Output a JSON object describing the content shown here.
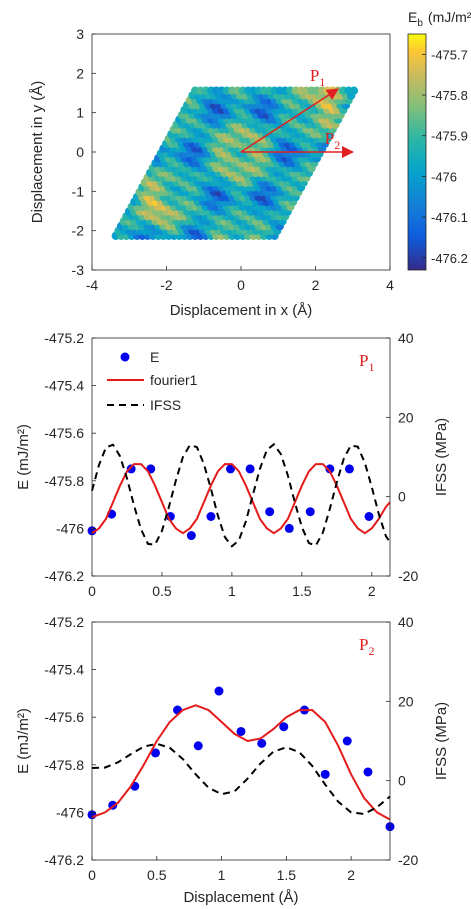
{
  "chart_data": [
    {
      "type": "heatmap",
      "xlabel": "Displacement in x (Å)",
      "ylabel": "Displacement in y (Å)",
      "xlim": [
        -4,
        4
      ],
      "ylim": [
        -3,
        3
      ],
      "xticks": [
        "-4",
        "-2",
        "0",
        "2",
        "4"
      ],
      "yticks": [
        "-3",
        "-2",
        "-1",
        "0",
        "1",
        "2",
        "3"
      ],
      "colorbar": {
        "title_main": "E",
        "title_sub": "b",
        "title_unit": "(mJ/m²)",
        "range": [
          -476.23,
          -475.65
        ],
        "ticks": [
          "-475.7",
          "-475.8",
          "-475.9",
          "-476",
          "-476.1",
          "-476.2"
        ],
        "colormap": "parula"
      },
      "vectors": [
        {
          "label_main": "P",
          "label_sub": "1",
          "from": [
            0,
            0
          ],
          "to": [
            2.6,
            1.6
          ]
        },
        {
          "label_main": "P",
          "label_sub": "2",
          "from": [
            0,
            0
          ],
          "to": [
            3.0,
            0
          ]
        }
      ],
      "arrow_color": "#e02020"
    },
    {
      "type": "line",
      "panel_label_main": "P",
      "panel_label_sub": "1",
      "xlim": [
        0,
        2.13
      ],
      "ylim_left": [
        -476.2,
        -475.2
      ],
      "ylim_right": [
        -20,
        40
      ],
      "ylabel_left": "E (mJ/m²)",
      "ylabel_right": "IFSS (MPa)",
      "xticks": [
        "0",
        "0.5",
        "1",
        "1.5",
        "2"
      ],
      "yticks_left": [
        "-475.2",
        "-475.4",
        "-475.6",
        "-475.8",
        "-476",
        "-476.2"
      ],
      "yticks_right": [
        "40",
        "20",
        "0",
        "-20"
      ],
      "legend": [
        "E",
        "fourier1",
        "IFSS"
      ],
      "series": [
        {
          "name": "E",
          "style": "markers",
          "color": "#0000ee",
          "x": [
            0,
            0.14,
            0.28,
            0.42,
            0.56,
            0.71,
            0.85,
            0.99,
            1.13,
            1.27,
            1.41,
            1.56,
            1.7,
            1.84,
            1.98
          ],
          "y": [
            -476.01,
            -475.94,
            -475.75,
            -475.75,
            -475.95,
            -476.03,
            -475.95,
            -475.75,
            -475.75,
            -475.93,
            -476.0,
            -475.93,
            -475.75,
            -475.75,
            -475.95
          ]
        },
        {
          "name": "fourier1",
          "style": "line",
          "color": "#e51b1b",
          "x": [
            0,
            0.05,
            0.1,
            0.15,
            0.2,
            0.25,
            0.3,
            0.35,
            0.4,
            0.45,
            0.5,
            0.55,
            0.6,
            0.65,
            0.7,
            0.75,
            0.8,
            0.85,
            0.9,
            0.95,
            1.0,
            1.05,
            1.1,
            1.15,
            1.2,
            1.25,
            1.3,
            1.35,
            1.4,
            1.45,
            1.5,
            1.55,
            1.6,
            1.65,
            1.7,
            1.75,
            1.8,
            1.85,
            1.9,
            1.95,
            2.0,
            2.05,
            2.1,
            2.13
          ],
          "y": [
            -476.02,
            -476.0,
            -475.96,
            -475.89,
            -475.82,
            -475.76,
            -475.73,
            -475.73,
            -475.76,
            -475.82,
            -475.89,
            -475.96,
            -476.0,
            -476.02,
            -476.0,
            -475.96,
            -475.89,
            -475.82,
            -475.76,
            -475.73,
            -475.73,
            -475.76,
            -475.82,
            -475.89,
            -475.96,
            -476.0,
            -476.02,
            -476.0,
            -475.96,
            -475.89,
            -475.82,
            -475.76,
            -475.73,
            -475.73,
            -475.76,
            -475.82,
            -475.89,
            -475.96,
            -476.0,
            -476.02,
            -476.0,
            -475.96,
            -475.91,
            -475.89
          ]
        },
        {
          "name": "IFSS",
          "style": "dashed",
          "color": "#000000",
          "axis": "right",
          "x": [
            0,
            0.05,
            0.1,
            0.15,
            0.2,
            0.25,
            0.3,
            0.35,
            0.4,
            0.45,
            0.5,
            0.55,
            0.6,
            0.65,
            0.7,
            0.75,
            0.8,
            0.85,
            0.9,
            0.95,
            1.0,
            1.05,
            1.1,
            1.15,
            1.2,
            1.25,
            1.3,
            1.35,
            1.4,
            1.45,
            1.5,
            1.55,
            1.6,
            1.65,
            1.7,
            1.75,
            1.8,
            1.85,
            1.9,
            1.95,
            2.0,
            2.05,
            2.1,
            2.13
          ],
          "y": [
            1.5,
            8.0,
            12.4,
            13.1,
            10.2,
            4.6,
            -2.2,
            -8.2,
            -11.9,
            -12.1,
            -8.6,
            -2.6,
            4.1,
            10.0,
            13.0,
            12.5,
            8.2,
            2.0,
            -4.8,
            -10.2,
            -12.5,
            -11.0,
            -6.2,
            0.5,
            7.0,
            11.8,
            13.2,
            10.7,
            5.3,
            -1.5,
            -7.7,
            -11.7,
            -12.3,
            -9.1,
            -3.1,
            3.6,
            9.6,
            12.9,
            12.6,
            8.6,
            2.4,
            -4.4,
            -9.9,
            -11.5
          ]
        }
      ]
    },
    {
      "type": "line",
      "panel_label_main": "P",
      "panel_label_sub": "2",
      "xlabel": "Displacement (Å)",
      "xlim": [
        0,
        2.3
      ],
      "ylim_left": [
        -476.2,
        -475.2
      ],
      "ylim_right": [
        -20,
        40
      ],
      "ylabel_left": "E (mJ/m²)",
      "ylabel_right": "IFSS (MPa)",
      "xticks": [
        "0",
        "0.5",
        "1",
        "1.5",
        "2"
      ],
      "yticks_left": [
        "-475.2",
        "-475.4",
        "-475.6",
        "-475.8",
        "-476",
        "-476.2"
      ],
      "yticks_right": [
        "40",
        "20",
        "0",
        "-20"
      ],
      "series": [
        {
          "name": "E",
          "style": "markers",
          "color": "#0000ee",
          "x": [
            0,
            0.16,
            0.33,
            0.49,
            0.66,
            0.82,
            0.98,
            1.15,
            1.31,
            1.48,
            1.64,
            1.8,
            1.97,
            2.13,
            2.3
          ],
          "y": [
            -476.01,
            -475.97,
            -475.89,
            -475.75,
            -475.57,
            -475.72,
            -475.49,
            -475.66,
            -475.71,
            -475.64,
            -475.57,
            -475.84,
            -475.7,
            -475.83,
            -476.06
          ]
        },
        {
          "name": "fourier1",
          "style": "line",
          "color": "#e51b1b",
          "x": [
            0,
            0.1,
            0.2,
            0.3,
            0.4,
            0.5,
            0.6,
            0.7,
            0.8,
            0.9,
            1.0,
            1.1,
            1.2,
            1.3,
            1.4,
            1.5,
            1.6,
            1.7,
            1.8,
            1.9,
            2.0,
            2.1,
            2.2,
            2.3
          ],
          "y": [
            -476.02,
            -476.0,
            -475.96,
            -475.89,
            -475.8,
            -475.7,
            -475.62,
            -475.57,
            -475.55,
            -475.57,
            -475.62,
            -475.67,
            -475.7,
            -475.69,
            -475.65,
            -475.6,
            -475.57,
            -475.57,
            -475.62,
            -475.72,
            -475.84,
            -475.94,
            -476.0,
            -476.03
          ]
        },
        {
          "name": "IFSS",
          "style": "dashed",
          "color": "#000000",
          "axis": "right",
          "x": [
            0,
            0.1,
            0.2,
            0.3,
            0.4,
            0.5,
            0.6,
            0.7,
            0.8,
            0.9,
            1.0,
            1.1,
            1.2,
            1.3,
            1.4,
            1.5,
            1.6,
            1.7,
            1.8,
            1.9,
            2.0,
            2.1,
            2.2,
            2.3
          ],
          "y": [
            3.2,
            3.3,
            4.6,
            6.7,
            8.6,
            9.3,
            8.3,
            5.5,
            1.6,
            -1.8,
            -3.4,
            -2.7,
            0.5,
            4.3,
            7.3,
            8.4,
            7.2,
            3.7,
            -1.0,
            -5.3,
            -8.0,
            -8.4,
            -6.7,
            -4.0
          ]
        }
      ]
    }
  ]
}
